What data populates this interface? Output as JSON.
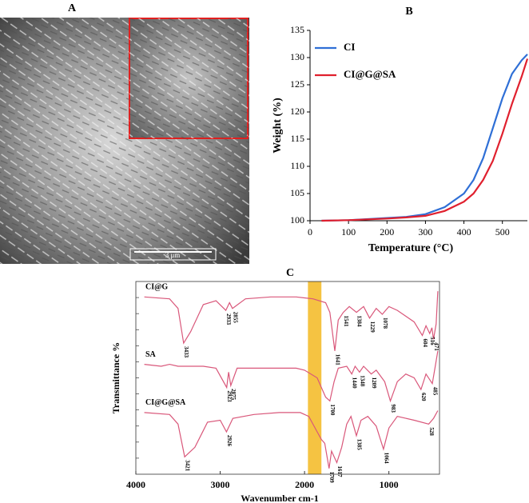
{
  "image_panel": {
    "label": "A",
    "scale_bar": "3 μm"
  },
  "chart_data": [
    {
      "type": "line",
      "label": "B",
      "xlabel": "Temperature (°C)",
      "ylabel": "Weight (%)",
      "x": [
        30,
        100,
        200,
        250,
        300,
        350,
        400,
        425,
        450,
        475,
        500,
        525,
        550,
        565
      ],
      "series": [
        {
          "name": "CI",
          "color": "#2f6fd6",
          "values": [
            100,
            100.1,
            100.5,
            100.7,
            101.2,
            102.5,
            105,
            107.5,
            111.5,
            117,
            122.5,
            127,
            129.5,
            130.6
          ]
        },
        {
          "name": "CI@G@SA",
          "color": "#e0202e",
          "values": [
            100,
            100.1,
            100.4,
            100.6,
            100.9,
            101.8,
            103.5,
            105,
            107.5,
            111,
            116,
            121.5,
            126.5,
            129.8
          ]
        }
      ],
      "xlim": [
        0,
        565
      ],
      "ylim": [
        100,
        135
      ],
      "xticks": [
        0,
        100,
        200,
        300,
        400,
        500
      ],
      "yticks": [
        100,
        105,
        110,
        115,
        120,
        125,
        130,
        135
      ],
      "legend": "upper-left"
    },
    {
      "type": "spectrum",
      "label": "C",
      "xlabel": "Wavenumber cm-1",
      "ylabel": "Transmittance %",
      "xlim": [
        4000,
        400
      ],
      "ylim": [
        0,
        100
      ],
      "xticks": [
        4000,
        3000,
        2000,
        1000
      ],
      "highlight": [
        1960,
        1800
      ],
      "highlight_color": "#f5c342",
      "series": [
        {
          "name": "CI@G",
          "color": "#d9577a",
          "x": [
            3900,
            3600,
            3500,
            3433,
            3350,
            3200,
            3050,
            2933,
            2890,
            2855,
            2700,
            2400,
            2100,
            1900,
            1750,
            1700,
            1641,
            1600,
            1541,
            1470,
            1384,
            1300,
            1229,
            1150,
            1078,
            1000,
            900,
            800,
            700,
            604,
            560,
            516,
            490,
            471,
            440,
            420
          ],
          "values": [
            92,
            91,
            86,
            68,
            74,
            88,
            90,
            85,
            89,
            86,
            91,
            92,
            92,
            91,
            89,
            84,
            64,
            80,
            84,
            87,
            84,
            87,
            81,
            86,
            83,
            87,
            85,
            82,
            79,
            72,
            77,
            73,
            76,
            70,
            78,
            95
          ],
          "peaks": [
            3433,
            2933,
            2855,
            1641,
            1541,
            1384,
            1229,
            1078,
            604,
            516,
            471
          ]
        },
        {
          "name": "SA",
          "color": "#d9577a",
          "x": [
            3900,
            3700,
            3600,
            3500,
            3200,
            3050,
            2923,
            2900,
            2875,
            2800,
            2400,
            2100,
            2000,
            1850,
            1750,
            1700,
            1650,
            1600,
            1500,
            1440,
            1400,
            1348,
            1300,
            1209,
            1150,
            1050,
            983,
            900,
            800,
            700,
            620,
            560,
            485,
            450,
            420
          ],
          "values": [
            57,
            56,
            57,
            56,
            56,
            55,
            45,
            53,
            46,
            55,
            55,
            55,
            54,
            50,
            40,
            38,
            48,
            55,
            56,
            52,
            56,
            53,
            56,
            52,
            54,
            48,
            38,
            48,
            52,
            50,
            44,
            52,
            47,
            56,
            64
          ],
          "peaks": [
            2923,
            2875,
            1700,
            1440,
            1348,
            1209,
            983,
            620,
            485
          ]
        },
        {
          "name": "CI@G@SA",
          "color": "#d9577a",
          "x": [
            3900,
            3600,
            3500,
            3421,
            3300,
            3150,
            3000,
            2926,
            2850,
            2600,
            2300,
            2050,
            1950,
            1850,
            1800,
            1760,
            1709,
            1680,
            1617,
            1560,
            1500,
            1450,
            1385,
            1330,
            1250,
            1150,
            1064,
            1000,
            900,
            800,
            700,
            528,
            470,
            420
          ],
          "values": [
            32,
            31,
            26,
            9,
            14,
            27,
            28,
            22,
            29,
            31,
            32,
            32,
            30,
            22,
            18,
            16,
            3,
            12,
            6,
            14,
            26,
            30,
            20,
            28,
            30,
            25,
            13,
            24,
            30,
            29,
            28,
            26,
            29,
            33
          ],
          "peaks": [
            3421,
            2926,
            1709,
            1617,
            1385,
            1064,
            528
          ]
        }
      ]
    }
  ]
}
